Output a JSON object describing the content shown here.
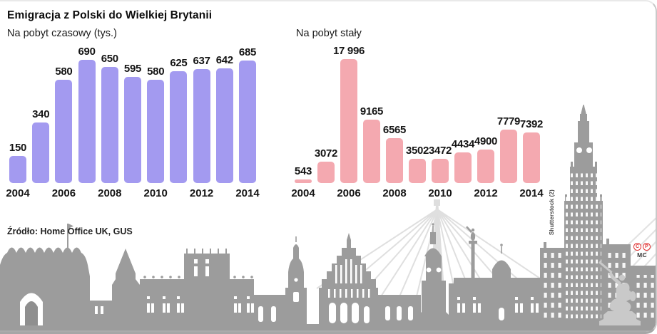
{
  "header": {
    "title": "Emigracja z Polski do Wielkiej Brytanii"
  },
  "source": {
    "text": "Źródło: Home Office UK, GUS"
  },
  "credit": {
    "text": "Shutterstock (2)"
  },
  "logo": {
    "symbol_left": "C",
    "symbol_right": "P",
    "initials": "MC",
    "color": "#e03131"
  },
  "chart_data": [
    {
      "type": "bar",
      "title": "Na pobyt czasowy (tys.)",
      "categories": [
        2004,
        2005,
        2006,
        2007,
        2008,
        2009,
        2010,
        2011,
        2012,
        2013,
        2014
      ],
      "values": [
        150,
        340,
        580,
        690,
        650,
        595,
        580,
        625,
        637,
        642,
        685
      ],
      "value_labels": [
        "150",
        "340",
        "580",
        "690",
        "650",
        "595",
        "580",
        "625",
        "637",
        "642",
        "685"
      ],
      "x_tick_labels": [
        "2004",
        "2006",
        "2008",
        "2010",
        "2012",
        "2014"
      ],
      "bar_color": "#a39af0",
      "ylim": [
        0,
        690
      ],
      "xlabel": "",
      "ylabel": "",
      "grid": false,
      "legend": "none"
    },
    {
      "type": "bar",
      "title": "Na pobyt stały",
      "categories": [
        2004,
        2005,
        2006,
        2007,
        2008,
        2009,
        2010,
        2011,
        2012,
        2013,
        2014
      ],
      "values": [
        543,
        3072,
        17996,
        9165,
        6565,
        3502,
        3472,
        4434,
        4900,
        7779,
        7392
      ],
      "value_labels": [
        "543",
        "3072",
        "17 996",
        "9165",
        "6565",
        "3502",
        "3472",
        "4434",
        "4900",
        "7779",
        "7392"
      ],
      "x_tick_labels": [
        "2004",
        "2006",
        "2008",
        "2010",
        "2012",
        "2014"
      ],
      "bar_color": "#f4a9b0",
      "ylim": [
        0,
        17996
      ],
      "xlabel": "",
      "ylabel": "",
      "grid": false,
      "legend": "none"
    }
  ]
}
